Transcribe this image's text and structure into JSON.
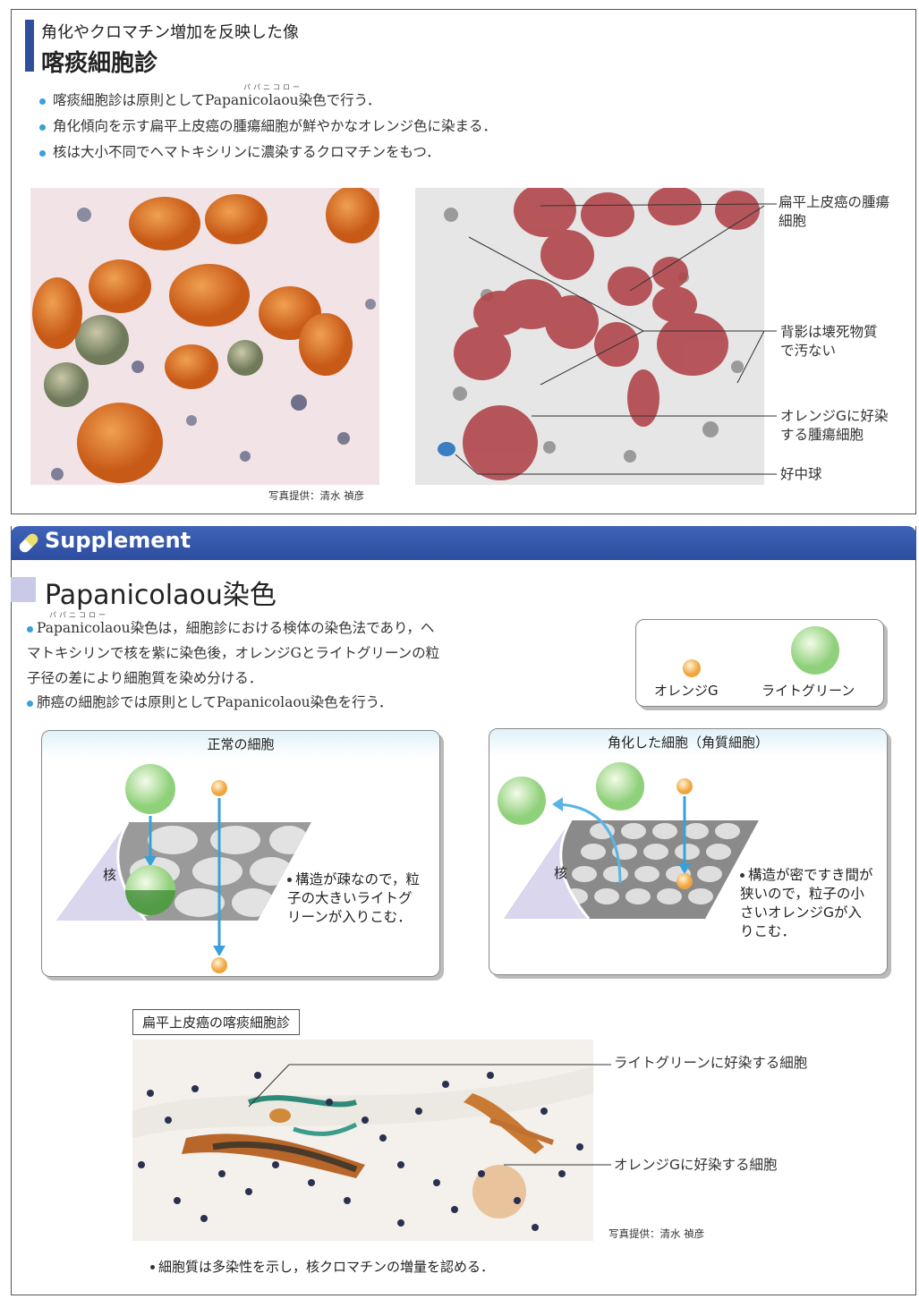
{
  "top_section": {
    "subtitle": "角化やクロマチン増加を反映した像",
    "title": "喀痰細胞診",
    "ruby": "パパニコロー",
    "bullets": [
      "喀痰細胞診は原則としてPapanicolaou染色で行う．",
      "角化傾向を示す扁平上皮癌の腫瘍細胞が鮮やかなオレンジ色に染まる．",
      "核は大小不同でヘマトキシリンに濃染するクロマチンをもつ．"
    ],
    "labels": {
      "tumor": "扁平上皮癌の腫瘍細胞",
      "background": "背影は壊死物質で汚ない",
      "orange_tumor": "オレンジGに好染する腫瘍細胞",
      "neutrophil": "好中球"
    },
    "credit": "写真提供：清水 禎彦"
  },
  "supplement": {
    "banner": "Supplement",
    "heading": "Papanicolaou染色",
    "ruby": "パパニコロー",
    "bullets": [
      "Papanicolaou染色は，細胞診における検体の染色法であり，ヘマトキシリンで核を紫に染色後，オレンジGとライトグリーンの粒子径の差により細胞質を染め分ける．",
      "肺癌の細胞診では原則としてPapanicolaou染色を行う．"
    ],
    "legend": {
      "orange": "オレンジG",
      "green": "ライトグリーン"
    },
    "normal": {
      "title": "正常の細胞",
      "nucleus": "核",
      "note": "構造が疎なので，粒子の大きいライトグリーンが入りこむ．"
    },
    "keratinized": {
      "title": "角化した細胞（角質細胞）",
      "nucleus": "核",
      "note": "構造が密ですき間が狭いので，粒子の小さいオレンジGが入りこむ．"
    },
    "bottom_photo": {
      "caption": "扁平上皮癌の喀痰細胞診",
      "label_green": "ライトグリーンに好染する細胞",
      "label_orange": "オレンジGに好染する細胞",
      "credit": "写真提供：清水 禎彦",
      "note": "細胞質は多染性を示し，核クロマチンの増量を認める．"
    }
  },
  "colors": {
    "accent_blue": "#2f4e9c",
    "bullet_blue": "#3aa0d8",
    "orange": "#e8a23a",
    "green": "#9fd98a"
  }
}
